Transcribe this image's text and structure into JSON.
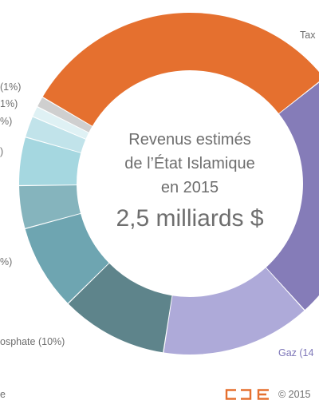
{
  "chart_data": {
    "type": "pie",
    "variant": "donut",
    "title": "Revenus estimés de l’État Islamique en 2015",
    "center_text": [
      "Revenus estimés",
      "de l’État Islamique",
      "en 2015"
    ],
    "total_label": "2,5 milliards $",
    "slices": [
      {
        "label": "Tax",
        "value": 30.5,
        "color": "#e5702f",
        "label_visible": "Tax"
      },
      {
        "label": "",
        "value": 23.5,
        "color": "#857cb8",
        "label_visible": ""
      },
      {
        "label": "Gaz",
        "value": 14,
        "color": "#aeaad9",
        "label_visible": "Gaz (14"
      },
      {
        "label": "Phosphate",
        "value": 10,
        "color": "#5e848b",
        "label_visible": "osphate (10%)"
      },
      {
        "label": "",
        "value": 8,
        "color": "#6ea5b1",
        "label_visible": "%)"
      },
      {
        "label": "",
        "value": 4,
        "color": "#85b4bd",
        "label_visible": ""
      },
      {
        "label": "",
        "value": 4.5,
        "color": "#a5d7e0",
        "label_visible": ")"
      },
      {
        "label": "",
        "value": 2,
        "color": "#c1e3ea",
        "label_visible": "%)"
      },
      {
        "label": "",
        "value": 1,
        "color": "#dff1f4",
        "label_visible": "1%)"
      },
      {
        "label": "",
        "value": 1,
        "color": "#cfcfcf",
        "label_visible": "(1%)"
      }
    ]
  },
  "footer": {
    "source_fragment": "e",
    "copyright": "© 2015"
  },
  "logo_text": "CDE",
  "colors": {
    "logo": "#e5702f",
    "text": "#6e6e6e",
    "gaz_label": "#7d76b8"
  }
}
